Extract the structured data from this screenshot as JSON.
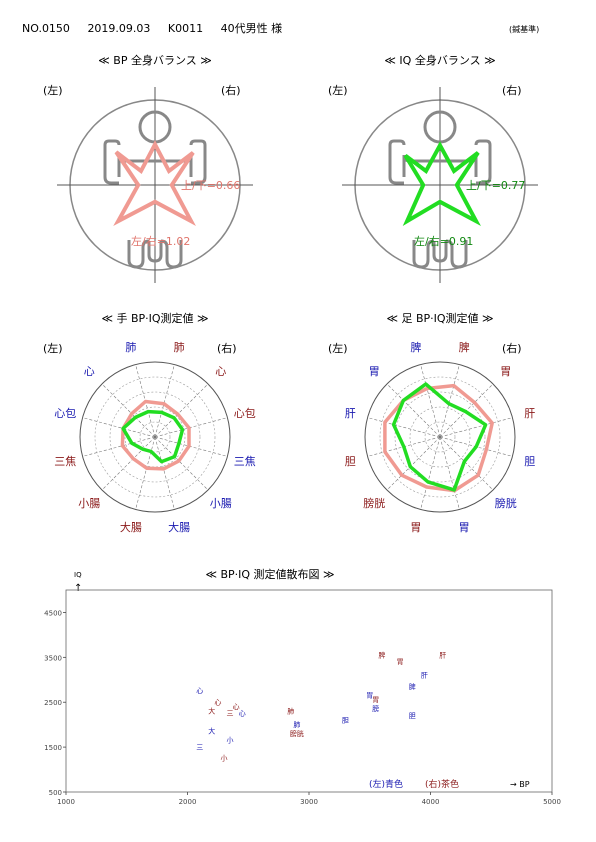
{
  "header": {
    "number": "NO.0150",
    "date": "2019.09.03",
    "code": "K0011",
    "subject": "40代男性 様",
    "right_note": "(鍼基準)"
  },
  "colors": {
    "bp": "#f09a92",
    "iq": "#22dd22",
    "left_label": "#1a1ab0",
    "right_label": "#8b1a1a",
    "frame": "#888888"
  },
  "balance": [
    {
      "title": "≪ BP 全身バランス ≫",
      "left_tag": "(左)",
      "right_tag": "(右)",
      "ud_label": "上/下=0.66",
      "lr_label": "左/右=1.02",
      "ud": 0.66,
      "lr": 1.02,
      "color_key": "bp"
    },
    {
      "title": "≪ IQ 全身バランス ≫",
      "left_tag": "(左)",
      "right_tag": "(右)",
      "ud_label": "上/下=0.77",
      "lr_label": "左/右=0.91",
      "ud": 0.77,
      "lr": 0.91,
      "color_key": "iq"
    }
  ],
  "chart_data": [
    {
      "type": "radar",
      "title": "≪ 手 BP·IQ測定値 ≫",
      "left_tag": "(左)",
      "right_tag": "(右)",
      "axes": [
        "肺",
        "心",
        "心包",
        "三焦",
        "小腸",
        "大腸",
        "大腸",
        "小腸",
        "三焦",
        "心包",
        "心",
        "肺"
      ],
      "axis_side": [
        "L",
        "L",
        "L",
        "R",
        "R",
        "R",
        "L",
        "L",
        "L",
        "R",
        "R",
        "R"
      ],
      "scale_max": 5000,
      "series": [
        {
          "name": "BP",
          "values": [
            2450,
            2200,
            2200,
            2250,
            2050,
            2150,
            2200,
            2250,
            2350,
            2350,
            2150,
            2300
          ]
        },
        {
          "name": "IQ",
          "values": [
            1750,
            1850,
            2200,
            1600,
            1150,
            1000,
            1700,
            1850,
            1650,
            1900,
            1800,
            1700
          ]
        }
      ]
    },
    {
      "type": "radar",
      "title": "≪ 足 BP·IQ測定値 ≫",
      "left_tag": "(左)",
      "right_tag": "(右)",
      "axes": [
        "脾",
        "胃",
        "肝",
        "胆",
        "膀胱",
        "胃",
        "胃",
        "膀胱",
        "胆",
        "肝",
        "胃",
        "脾"
      ],
      "axis_side": [
        "L",
        "L",
        "L",
        "R",
        "R",
        "R",
        "L",
        "L",
        "L",
        "R",
        "R",
        "R"
      ],
      "scale_max": 5000,
      "series": [
        {
          "name": "BP",
          "values": [
            3350,
            3450,
            3800,
            3800,
            3600,
            3450,
            3700,
            3600,
            3200,
            3600,
            3250,
            3550
          ]
        },
        {
          "name": "IQ",
          "values": [
            3650,
            3450,
            3200,
            2500,
            2800,
            3100,
            3650,
            2300,
            2500,
            3150,
            2400,
            2300
          ]
        }
      ]
    },
    {
      "type": "scatter",
      "title": "≪ BP·IQ 測定値散布図 ≫",
      "xlabel": "→ BP",
      "ylabel": "IQ",
      "y_arrow": "↑",
      "xlim": [
        1000,
        5000
      ],
      "ylim": [
        500,
        5000
      ],
      "x_ticks": [
        1000,
        2000,
        3000,
        4000,
        5000
      ],
      "y_ticks": [
        500,
        1500,
        2500,
        3500,
        4500
      ],
      "legend": {
        "left": "(左)青色",
        "right": "(右)茶色"
      },
      "points": [
        {
          "label": "心",
          "x": 2100,
          "y": 2700,
          "side": "L"
        },
        {
          "label": "心",
          "x": 2250,
          "y": 2450,
          "side": "R"
        },
        {
          "label": "心",
          "x": 2400,
          "y": 2350,
          "side": "R"
        },
        {
          "label": "大",
          "x": 2200,
          "y": 2250,
          "side": "R"
        },
        {
          "label": "三",
          "x": 2350,
          "y": 2200,
          "side": "R"
        },
        {
          "label": "心",
          "x": 2450,
          "y": 2200,
          "side": "L"
        },
        {
          "label": "大",
          "x": 2200,
          "y": 1800,
          "side": "L"
        },
        {
          "label": "小",
          "x": 2350,
          "y": 1600,
          "side": "L"
        },
        {
          "label": "三",
          "x": 2100,
          "y": 1450,
          "side": "L"
        },
        {
          "label": "小",
          "x": 2300,
          "y": 1200,
          "side": "R"
        },
        {
          "label": "肺",
          "x": 2850,
          "y": 2250,
          "side": "R"
        },
        {
          "label": "肺",
          "x": 2900,
          "y": 1950,
          "side": "L"
        },
        {
          "label": "膀胱",
          "x": 2900,
          "y": 1750,
          "side": "R"
        },
        {
          "label": "脾",
          "x": 3600,
          "y": 3500,
          "side": "R"
        },
        {
          "label": "胃",
          "x": 3750,
          "y": 3350,
          "side": "R"
        },
        {
          "label": "肝",
          "x": 4100,
          "y": 3500,
          "side": "R"
        },
        {
          "label": "肝",
          "x": 3950,
          "y": 3050,
          "side": "L"
        },
        {
          "label": "脾",
          "x": 3850,
          "y": 2800,
          "side": "L"
        },
        {
          "label": "胃",
          "x": 3500,
          "y": 2600,
          "side": "L"
        },
        {
          "label": "胃",
          "x": 3550,
          "y": 2500,
          "side": "R"
        },
        {
          "label": "膀",
          "x": 3550,
          "y": 2300,
          "side": "L"
        },
        {
          "label": "胆",
          "x": 3300,
          "y": 2050,
          "side": "L"
        },
        {
          "label": "胆",
          "x": 3850,
          "y": 2150,
          "side": "L"
        }
      ]
    }
  ]
}
